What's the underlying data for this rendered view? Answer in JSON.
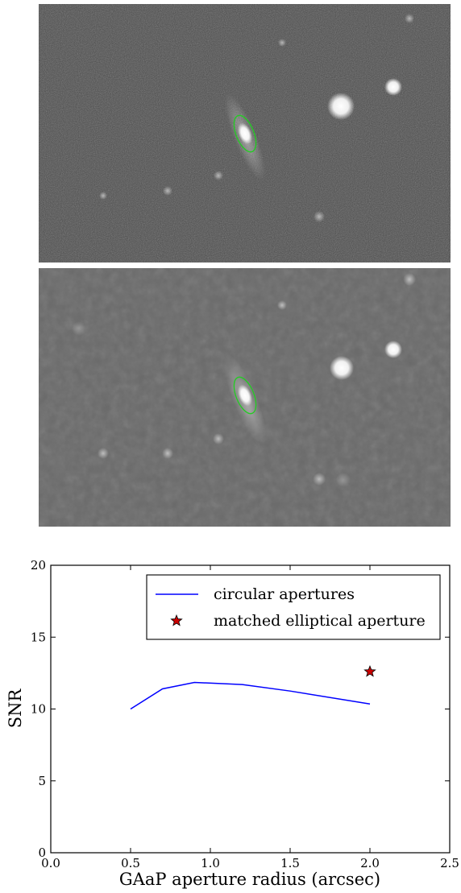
{
  "images": {
    "top": {
      "description_name": "galaxy-image-unsmoothed",
      "ellipse_color": "#22cc22"
    },
    "bottom": {
      "description_name": "galaxy-image-smoothed",
      "ellipse_color": "#22cc22"
    }
  },
  "chart_data": {
    "type": "line",
    "title": "",
    "xlabel": "GAaP aperture radius (arcsec)",
    "ylabel": "SNR",
    "xlim": [
      0.0,
      2.5
    ],
    "ylim": [
      0,
      20
    ],
    "xticks": [
      0.0,
      0.5,
      1.0,
      1.5,
      2.0,
      2.5
    ],
    "xtick_labels": [
      "0.0",
      "0.5",
      "1.0",
      "1.5",
      "2.0",
      "2.5"
    ],
    "yticks": [
      0,
      5,
      10,
      15,
      20
    ],
    "ytick_labels": [
      "0",
      "5",
      "10",
      "15",
      "20"
    ],
    "grid": false,
    "legend_position": "top-right",
    "series": [
      {
        "name": "circular apertures",
        "kind": "line",
        "color": "#0000ff",
        "x": [
          0.5,
          0.7,
          0.9,
          1.2,
          1.5,
          2.0
        ],
        "y": [
          10.0,
          11.4,
          11.85,
          11.7,
          11.25,
          10.35
        ]
      },
      {
        "name": "matched elliptical aperture",
        "kind": "marker",
        "marker": "star",
        "color": "#cc0000",
        "x": [
          2.0
        ],
        "y": [
          12.6
        ]
      }
    ]
  }
}
